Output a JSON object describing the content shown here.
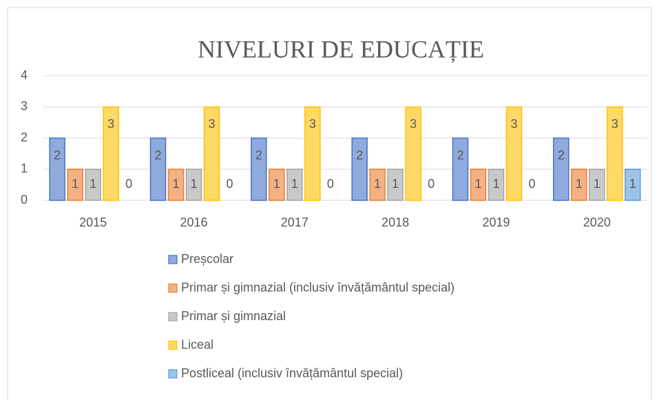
{
  "chart_data": {
    "type": "bar",
    "title": "NIVELURI DE EDUCAȚIE",
    "categories": [
      "2015",
      "2016",
      "2017",
      "2018",
      "2019",
      "2020"
    ],
    "series": [
      {
        "name": "Preșcolar",
        "color": "#8faadc",
        "edge_color": "#4472c4",
        "values": [
          2,
          2,
          2,
          2,
          2,
          2
        ]
      },
      {
        "name": "Primar și gimnazial (inclusiv învățământul special)",
        "color": "#f4b183",
        "edge_color": "#ed7d31",
        "values": [
          1,
          1,
          1,
          1,
          1,
          1
        ]
      },
      {
        "name": "Primar și gimnazial",
        "color": "#c9c9c9",
        "edge_color": "#a5a5a5",
        "values": [
          1,
          1,
          1,
          1,
          1,
          1
        ]
      },
      {
        "name": "Liceal",
        "color": "#ffd966",
        "edge_color": "#ffc000",
        "values": [
          3,
          3,
          3,
          3,
          3,
          3
        ]
      },
      {
        "name": "Postliceal (inclusiv învățământul special)",
        "color": "#9dc3e6",
        "edge_color": "#5b9bd5",
        "values": [
          0,
          0,
          0,
          0,
          0,
          1
        ]
      }
    ],
    "ylim": [
      0,
      4
    ],
    "yticks": [
      0,
      1,
      2,
      3,
      4
    ],
    "grid": true,
    "legend": "bottom"
  }
}
